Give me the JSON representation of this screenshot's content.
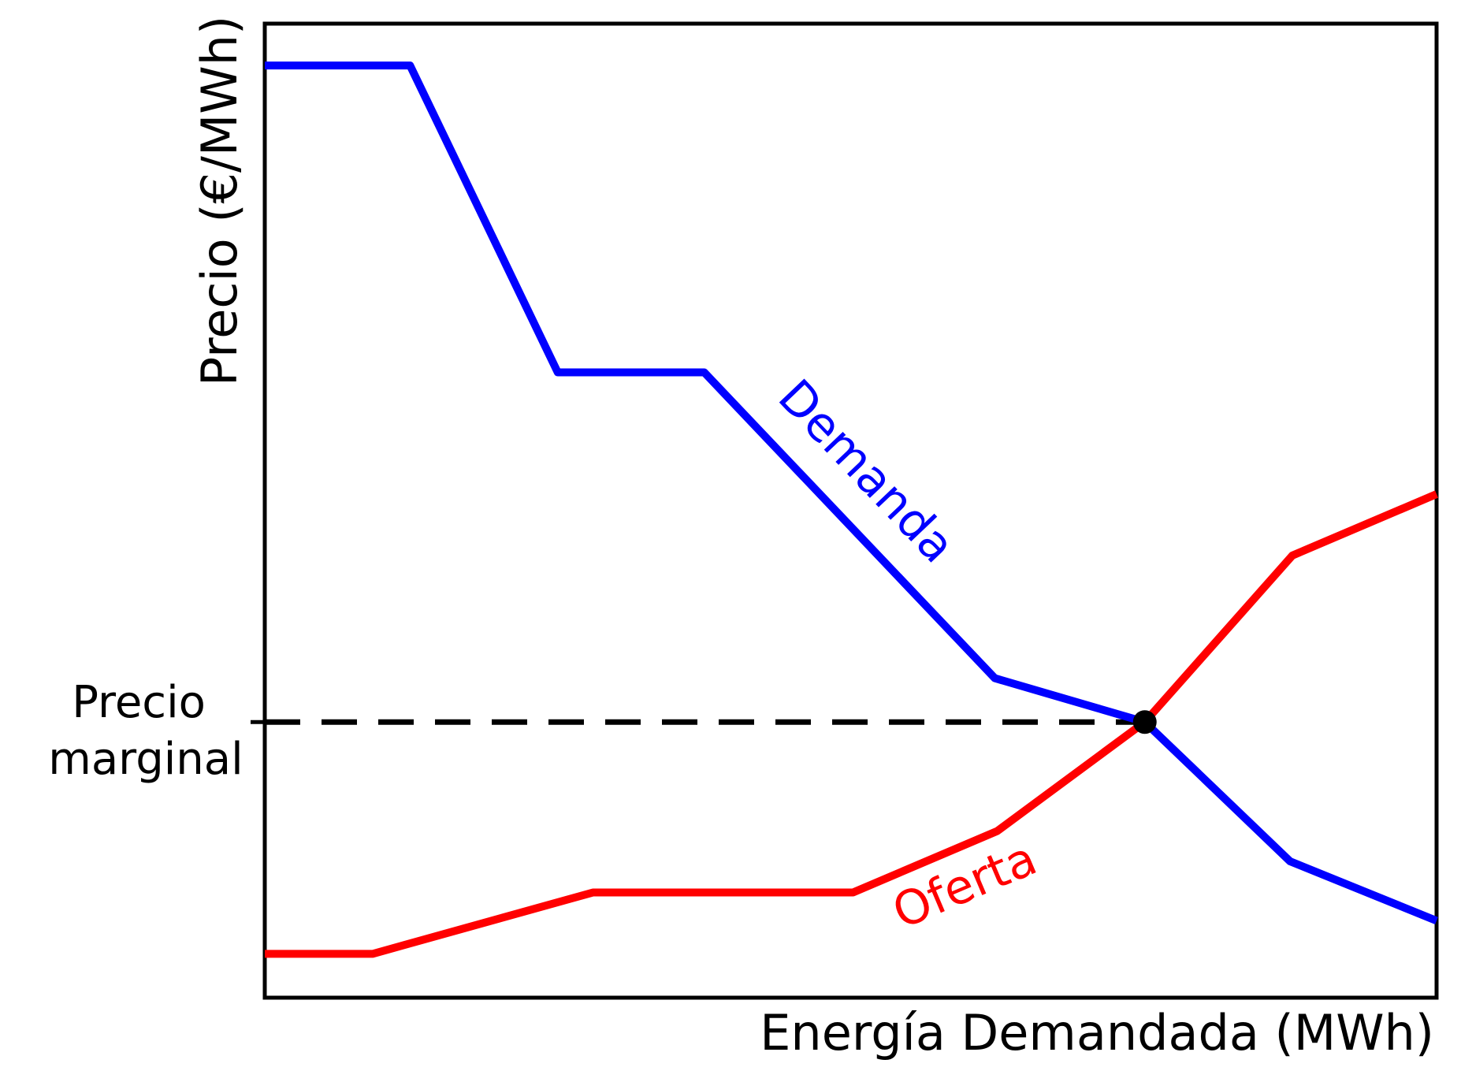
{
  "figure": {
    "background": "#ffffff",
    "frame_color": "#000000"
  },
  "labels": {
    "ylabel": "Precio (€/MWh)",
    "xlabel": "Energía Demandada (MWh)",
    "ytick_line1": "Precio",
    "ytick_line2": "marginal",
    "demanda": "Demanda",
    "oferta": "Oferta"
  },
  "chart_data": {
    "type": "line",
    "title": "",
    "xlabel": "Energía Demandada (MWh)",
    "ylabel": "Precio (€/MWh)",
    "xlim": [
      0,
      100
    ],
    "ylim": [
      0,
      100
    ],
    "grid": false,
    "legend": "none (labels drawn along curves)",
    "x_ticks": [],
    "y_ticks": [
      {
        "value": 28.3,
        "label": "Precio marginal"
      }
    ],
    "series": [
      {
        "name": "Demanda",
        "color": "#0000ff",
        "label_rotation_deg": 46.5,
        "x": [
          0,
          12.4,
          25.0,
          37.5,
          62.3,
          75.1,
          87.5,
          100
        ],
        "y": [
          95.7,
          95.7,
          64.2,
          64.2,
          32.8,
          28.3,
          14.0,
          7.9
        ]
      },
      {
        "name": "Oferta",
        "color": "#ff0000",
        "label_rotation_deg": -23,
        "x": [
          0,
          9.2,
          28.0,
          50.2,
          62.5,
          75.1,
          87.7,
          100
        ],
        "y": [
          4.5,
          4.5,
          10.8,
          10.8,
          17.1,
          28.3,
          45.4,
          51.7
        ]
      }
    ],
    "equilibrium": {
      "x": 75.1,
      "y": 28.3,
      "marker": "filled-circle",
      "marker_radius_px": 15,
      "color": "#000000",
      "dashed_guide_to_y_axis": true
    }
  }
}
